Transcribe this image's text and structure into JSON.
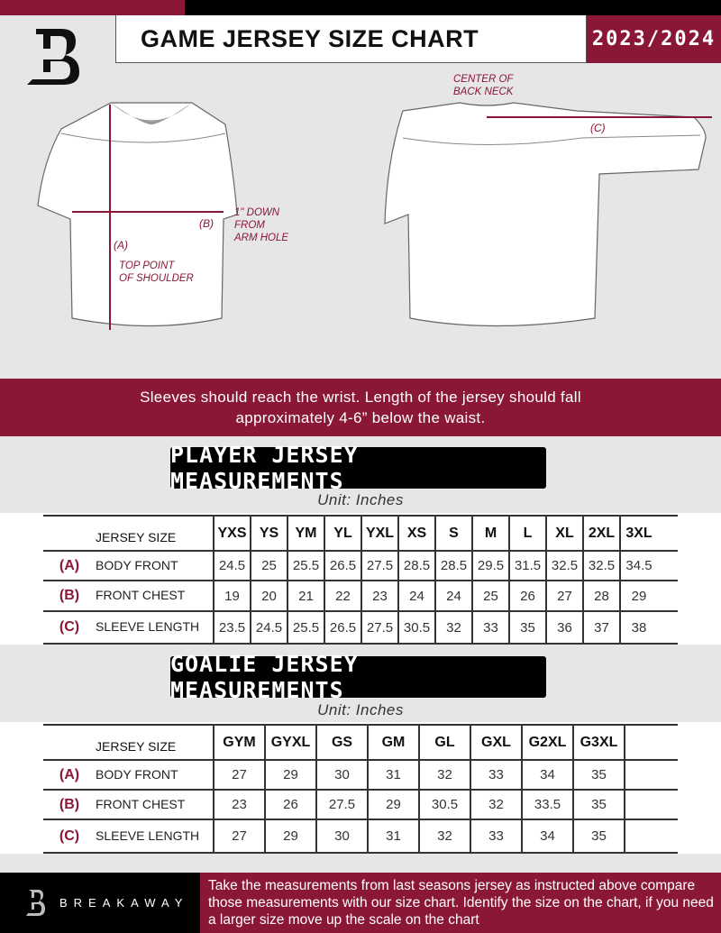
{
  "header": {
    "title": "GAME JERSEY SIZE CHART",
    "season": "2023/2024",
    "logo": "B"
  },
  "diagram": {
    "front_labels": {
      "a": "(A)",
      "b": "(B)",
      "top_point": "TOP POINT\nOF SHOULDER",
      "arm_hole": "1\" DOWN\nFROM\nARM HOLE"
    },
    "back_labels": {
      "c": "(C)",
      "center": "CENTER OF\nBACK NECK"
    }
  },
  "instruction": "Sleeves should reach the wrist. Length of the jersey should fall approximately 4-6” below the waist.",
  "player": {
    "title": "PLAYER JERSEY MEASUREMENTS",
    "unit": "Unit: Inches",
    "size_label": "JERSEY SIZE",
    "sizes": [
      "YXS",
      "YS",
      "YM",
      "YL",
      "YXL",
      "XS",
      "S",
      "M",
      "L",
      "XL",
      "2XL",
      "3XL"
    ],
    "rows": [
      {
        "letter": "(A)",
        "label": "BODY FRONT",
        "values": [
          "24.5",
          "25",
          "25.5",
          "26.5",
          "27.5",
          "28.5",
          "28.5",
          "29.5",
          "31.5",
          "32.5",
          "32.5",
          "34.5"
        ]
      },
      {
        "letter": "(B)",
        "label": "FRONT CHEST",
        "values": [
          "19",
          "20",
          "21",
          "22",
          "23",
          "24",
          "24",
          "25",
          "26",
          "27",
          "28",
          "29"
        ]
      },
      {
        "letter": "(C)",
        "label": "SLEEVE LENGTH",
        "values": [
          "23.5",
          "24.5",
          "25.5",
          "26.5",
          "27.5",
          "30.5",
          "32",
          "33",
          "35",
          "36",
          "37",
          "38"
        ]
      }
    ]
  },
  "goalie": {
    "title": "GOALIE JERSEY MEASUREMENTS",
    "unit": "Unit: Inches",
    "size_label": "JERSEY SIZE",
    "sizes": [
      "GYM",
      "GYXL",
      "GS",
      "GM",
      "GL",
      "GXL",
      "G2XL",
      "G3XL",
      ""
    ],
    "rows": [
      {
        "letter": "(A)",
        "label": "BODY FRONT",
        "values": [
          "27",
          "29",
          "30",
          "31",
          "32",
          "33",
          "34",
          "35",
          ""
        ]
      },
      {
        "letter": "(B)",
        "label": "FRONT CHEST",
        "values": [
          "23",
          "26",
          "27.5",
          "29",
          "30.5",
          "32",
          "33.5",
          "35",
          ""
        ]
      },
      {
        "letter": "(C)",
        "label": "SLEEVE LENGTH",
        "values": [
          "27",
          "29",
          "30",
          "31",
          "32",
          "33",
          "34",
          "35",
          ""
        ]
      }
    ]
  },
  "footer": {
    "brand": "BREAKAWAY",
    "text": "Take the measurements from last seasons jersey as instructed above compare those measurements  with our size chart. Identify the size on the chart, if you need a larger size move up the scale on the chart"
  },
  "colors": {
    "brand": "#8a1735",
    "black": "#000000",
    "background": "#e6e6e7"
  }
}
